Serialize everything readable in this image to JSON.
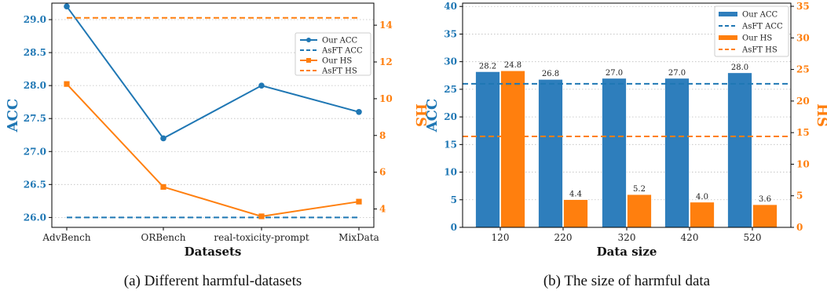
{
  "chart_data": [
    {
      "type": "line",
      "caption": "(a) Different harmful-datasets",
      "xlabel": "Datasets",
      "ylabel_left": "ACC",
      "ylabel_right": "HS",
      "categories": [
        "AdvBench",
        "ORBench",
        "real-toxicity-prompt",
        "MixData"
      ],
      "left_ylim": [
        25.85,
        29.25
      ],
      "left_ticks": [
        "26.0",
        "26.5",
        "27.0",
        "27.5",
        "28.0",
        "28.5",
        "29.0"
      ],
      "right_ylim": [
        3.0,
        15.2
      ],
      "right_ticks": [
        "4",
        "6",
        "8",
        "10",
        "12",
        "14"
      ],
      "series": [
        {
          "name": "Our ACC",
          "axis": "left",
          "style": "solid",
          "marker": "circle",
          "color": "#1f77b4",
          "values": [
            29.2,
            27.2,
            28.0,
            27.6
          ]
        },
        {
          "name": "AsFT ACC",
          "axis": "left",
          "style": "dashed",
          "color": "#1f77b4",
          "values": [
            26.0,
            26.0,
            26.0,
            26.0
          ]
        },
        {
          "name": "Our HS",
          "axis": "right",
          "style": "solid",
          "marker": "square",
          "color": "#ff7f0e",
          "values": [
            10.8,
            5.2,
            3.6,
            4.4
          ]
        },
        {
          "name": "AsFT HS",
          "axis": "right",
          "style": "dashed",
          "color": "#ff7f0e",
          "values": [
            14.4,
            14.4,
            14.4,
            14.4
          ]
        }
      ],
      "legend": "upper-right",
      "grid": "horizontal dotted"
    },
    {
      "type": "bar",
      "caption": "(b)  The size of harmful data",
      "xlabel": "Data size",
      "ylabel_left": "ACC",
      "ylabel_right": "HS",
      "categories": [
        "120",
        "220",
        "320",
        "420",
        "520"
      ],
      "left_ylim": [
        0,
        40.6
      ],
      "left_ticks": [
        "0",
        "5",
        "10",
        "15",
        "20",
        "25",
        "30",
        "35",
        "40"
      ],
      "right_ylim": [
        0,
        35.5
      ],
      "right_ticks": [
        "0",
        "5",
        "10",
        "15",
        "20",
        "25",
        "30",
        "35"
      ],
      "series": [
        {
          "name": "Our ACC",
          "axis": "left",
          "kind": "bar",
          "color": "#2e7ebc",
          "values": [
            28.2,
            26.8,
            27.0,
            27.0,
            28.0
          ],
          "labels": [
            "28.2",
            "26.8",
            "27.0",
            "27.0",
            "28.0"
          ]
        },
        {
          "name": "AsFT ACC",
          "axis": "left",
          "kind": "hline",
          "color": "#1f77b4",
          "value": 26.0
        },
        {
          "name": "Our HS",
          "axis": "right",
          "kind": "bar",
          "color": "#ff7f0e",
          "values": [
            24.8,
            4.4,
            5.2,
            4.0,
            3.6
          ],
          "labels": [
            "24.8",
            "4.4",
            "5.2",
            "4.0",
            "3.6"
          ]
        },
        {
          "name": "AsFT HS",
          "axis": "right",
          "kind": "hline",
          "color": "#ff7f0e",
          "value": 14.4
        }
      ],
      "legend": "upper-right",
      "grid": "horizontal dotted"
    }
  ]
}
